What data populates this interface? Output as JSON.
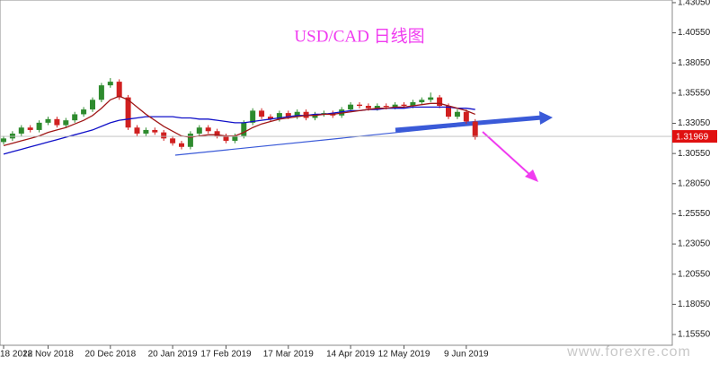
{
  "chart_data": {
    "type": "candlestick",
    "title": "USD/CAD 日线图",
    "watermark": "www.forexre.com",
    "categories": [
      "18 2018",
      null,
      null,
      null,
      null,
      "22 Nov 2018",
      null,
      null,
      null,
      null,
      null,
      null,
      "20 Dec 2018",
      null,
      null,
      null,
      null,
      null,
      null,
      "20 Jan 2019",
      null,
      null,
      null,
      null,
      null,
      "17 Feb 2019",
      null,
      null,
      null,
      null,
      null,
      null,
      "17 Mar 2019",
      null,
      null,
      null,
      null,
      null,
      null,
      "14 Apr 2019",
      null,
      null,
      null,
      null,
      null,
      "12 May 2019",
      null,
      null,
      null,
      null,
      null,
      null,
      "9 Jun 2019",
      null
    ],
    "open": [
      1.315,
      1.318,
      1.322,
      1.327,
      1.325,
      1.331,
      1.334,
      1.329,
      1.333,
      1.338,
      1.342,
      1.35,
      1.362,
      1.365,
      1.352,
      1.327,
      1.322,
      1.325,
      1.323,
      1.318,
      1.314,
      1.311,
      1.322,
      1.327,
      1.324,
      1.32,
      1.316,
      1.32,
      1.331,
      1.341,
      1.336,
      1.334,
      1.339,
      1.336,
      1.34,
      1.335,
      1.338,
      1.339,
      1.337,
      1.342,
      1.346,
      1.345,
      1.343,
      1.345,
      1.344,
      1.346,
      1.345,
      1.348,
      1.35,
      1.352,
      1.345,
      1.336,
      1.34,
      1.332
    ],
    "high": [
      1.32,
      1.324,
      1.329,
      1.329,
      1.333,
      1.336,
      1.336,
      1.335,
      1.34,
      1.344,
      1.352,
      1.364,
      1.368,
      1.367,
      1.354,
      1.329,
      1.327,
      1.327,
      1.325,
      1.32,
      1.316,
      1.324,
      1.329,
      1.329,
      1.326,
      1.322,
      1.322,
      1.333,
      1.343,
      1.343,
      1.338,
      1.341,
      1.341,
      1.342,
      1.342,
      1.34,
      1.341,
      1.341,
      1.344,
      1.348,
      1.348,
      1.347,
      1.347,
      1.347,
      1.348,
      1.348,
      1.35,
      1.352,
      1.356,
      1.354,
      1.347,
      1.342,
      1.342,
      1.334
    ],
    "low": [
      1.313,
      1.316,
      1.32,
      1.323,
      1.323,
      1.329,
      1.327,
      1.327,
      1.331,
      1.336,
      1.34,
      1.348,
      1.36,
      1.35,
      1.325,
      1.32,
      1.32,
      1.321,
      1.316,
      1.312,
      1.309,
      1.309,
      1.32,
      1.322,
      1.318,
      1.314,
      1.314,
      1.318,
      1.329,
      1.334,
      1.332,
      1.332,
      1.334,
      1.334,
      1.333,
      1.333,
      1.336,
      1.335,
      1.335,
      1.34,
      1.343,
      1.341,
      1.341,
      1.342,
      1.342,
      1.343,
      1.343,
      1.346,
      1.348,
      1.343,
      1.334,
      1.334,
      1.33,
      1.317
    ],
    "close": [
      1.318,
      1.322,
      1.327,
      1.325,
      1.331,
      1.334,
      1.329,
      1.333,
      1.338,
      1.342,
      1.35,
      1.362,
      1.365,
      1.352,
      1.327,
      1.322,
      1.325,
      1.323,
      1.318,
      1.314,
      1.311,
      1.322,
      1.327,
      1.324,
      1.32,
      1.316,
      1.32,
      1.331,
      1.341,
      1.336,
      1.334,
      1.339,
      1.336,
      1.34,
      1.335,
      1.338,
      1.339,
      1.337,
      1.342,
      1.346,
      1.345,
      1.343,
      1.345,
      1.344,
      1.346,
      1.345,
      1.348,
      1.35,
      1.352,
      1.345,
      1.336,
      1.34,
      1.332,
      1.319
    ],
    "up_color": "#2e8b2e",
    "down_color": "#d02020",
    "series": [
      {
        "color": "#1010c8",
        "values": [
          1.305,
          1.307,
          1.309,
          1.311,
          1.313,
          1.315,
          1.317,
          1.319,
          1.321,
          1.323,
          1.325,
          1.328,
          1.331,
          1.333,
          1.334,
          1.335,
          1.336,
          1.336,
          1.336,
          1.336,
          1.335,
          1.335,
          1.334,
          1.334,
          1.333,
          1.332,
          1.331,
          1.331,
          1.332,
          1.333,
          1.334,
          1.335,
          1.336,
          1.337,
          1.337,
          1.338,
          1.338,
          1.339,
          1.34,
          1.341,
          1.341,
          1.342,
          1.342,
          1.343,
          1.343,
          1.343,
          1.344,
          1.344,
          1.344,
          1.344,
          1.344,
          1.343,
          1.343,
          1.342
        ]
      },
      {
        "color": "#a01818",
        "values": [
          1.312,
          1.314,
          1.316,
          1.318,
          1.32,
          1.323,
          1.325,
          1.327,
          1.33,
          1.333,
          1.337,
          1.343,
          1.35,
          1.353,
          1.35,
          1.344,
          1.338,
          1.333,
          1.328,
          1.324,
          1.32,
          1.319,
          1.32,
          1.321,
          1.321,
          1.32,
          1.32,
          1.323,
          1.327,
          1.33,
          1.332,
          1.334,
          1.335,
          1.336,
          1.337,
          1.337,
          1.338,
          1.338,
          1.339,
          1.34,
          1.341,
          1.342,
          1.343,
          1.343,
          1.344,
          1.344,
          1.345,
          1.346,
          1.347,
          1.347,
          1.345,
          1.343,
          1.341,
          1.338
        ]
      }
    ],
    "last_price": 1.31969,
    "last_price_color": "#e01010",
    "ylim": [
      1.1466,
      1.4327
    ],
    "yticks": [
      {
        "value": 1.4305,
        "label": "1.43050"
      },
      {
        "value": 1.4055,
        "label": "1.40550"
      },
      {
        "value": 1.3805,
        "label": "1.38050"
      },
      {
        "value": 1.3555,
        "label": "1.35550"
      },
      {
        "value": 1.3305,
        "label": "1.33050"
      },
      {
        "value": 1.3055,
        "label": "1.30550"
      },
      {
        "value": 1.2805,
        "label": "1.28050"
      },
      {
        "value": 1.2555,
        "label": "1.25550"
      },
      {
        "value": 1.2305,
        "label": "1.23050"
      },
      {
        "value": 1.2055,
        "label": "1.20550"
      },
      {
        "value": 1.1805,
        "label": "1.18050"
      },
      {
        "value": 1.1555,
        "label": "1.15550"
      }
    ],
    "grid": false
  }
}
